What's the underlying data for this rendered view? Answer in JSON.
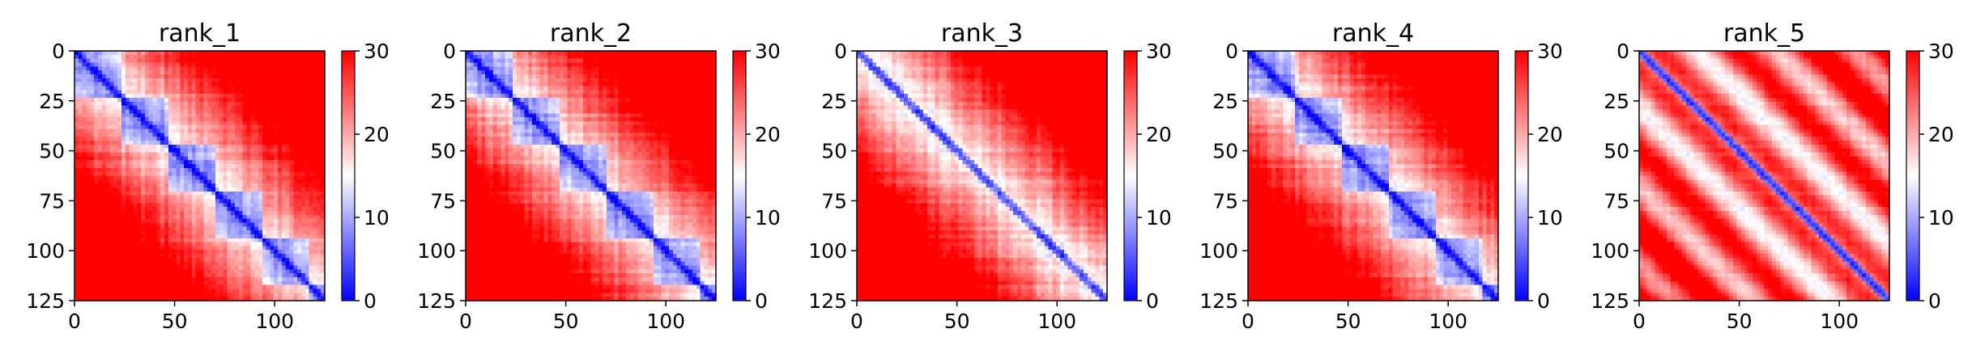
{
  "chart_data": [
    {
      "type": "heatmap",
      "title": "rank_1",
      "variant": "blocky",
      "x_range": [
        0,
        125
      ],
      "y_range": [
        0,
        125
      ],
      "x_ticks": [
        "0",
        "50",
        "100"
      ],
      "y_ticks": [
        "0",
        "25",
        "50",
        "75",
        "100",
        "125"
      ],
      "colorbar": {
        "ticks": [
          "0",
          "10",
          "20",
          "30"
        ],
        "min": 0,
        "max": 30
      },
      "colormap": "bwr",
      "color_low": "#0000ff",
      "color_mid": "#ffffff",
      "color_high": "#ff0000"
    },
    {
      "type": "heatmap",
      "title": "rank_2",
      "variant": "blocky",
      "x_range": [
        0,
        125
      ],
      "y_range": [
        0,
        125
      ],
      "x_ticks": [
        "0",
        "50",
        "100"
      ],
      "y_ticks": [
        "0",
        "25",
        "50",
        "75",
        "100",
        "125"
      ],
      "colorbar": {
        "ticks": [
          "0",
          "10",
          "20",
          "30"
        ],
        "min": 0,
        "max": 30
      },
      "colormap": "bwr",
      "color_low": "#0000ff",
      "color_mid": "#ffffff",
      "color_high": "#ff0000"
    },
    {
      "type": "heatmap",
      "title": "rank_3",
      "variant": "diagonal",
      "x_range": [
        0,
        125
      ],
      "y_range": [
        0,
        125
      ],
      "x_ticks": [
        "0",
        "50",
        "100"
      ],
      "y_ticks": [
        "0",
        "25",
        "50",
        "75",
        "100",
        "125"
      ],
      "colorbar": {
        "ticks": [
          "0",
          "10",
          "20",
          "30"
        ],
        "min": 0,
        "max": 30
      },
      "colormap": "bwr",
      "color_low": "#0000ff",
      "color_mid": "#ffffff",
      "color_high": "#ff0000"
    },
    {
      "type": "heatmap",
      "title": "rank_4",
      "variant": "blocky",
      "x_range": [
        0,
        125
      ],
      "y_range": [
        0,
        125
      ],
      "x_ticks": [
        "0",
        "50",
        "100"
      ],
      "y_ticks": [
        "0",
        "25",
        "50",
        "75",
        "100",
        "125"
      ],
      "colorbar": {
        "ticks": [
          "0",
          "10",
          "20",
          "30"
        ],
        "min": 0,
        "max": 30
      },
      "colormap": "bwr",
      "color_low": "#0000ff",
      "color_mid": "#ffffff",
      "color_high": "#ff0000"
    },
    {
      "type": "heatmap",
      "title": "rank_5",
      "variant": "striped",
      "x_range": [
        0,
        125
      ],
      "y_range": [
        0,
        125
      ],
      "x_ticks": [
        "0",
        "50",
        "100"
      ],
      "y_ticks": [
        "0",
        "25",
        "50",
        "75",
        "100",
        "125"
      ],
      "colorbar": {
        "ticks": [
          "0",
          "10",
          "20",
          "30"
        ],
        "min": 0,
        "max": 30
      },
      "colormap": "bwr",
      "color_low": "#0000ff",
      "color_mid": "#ffffff",
      "color_high": "#ff0000"
    }
  ]
}
